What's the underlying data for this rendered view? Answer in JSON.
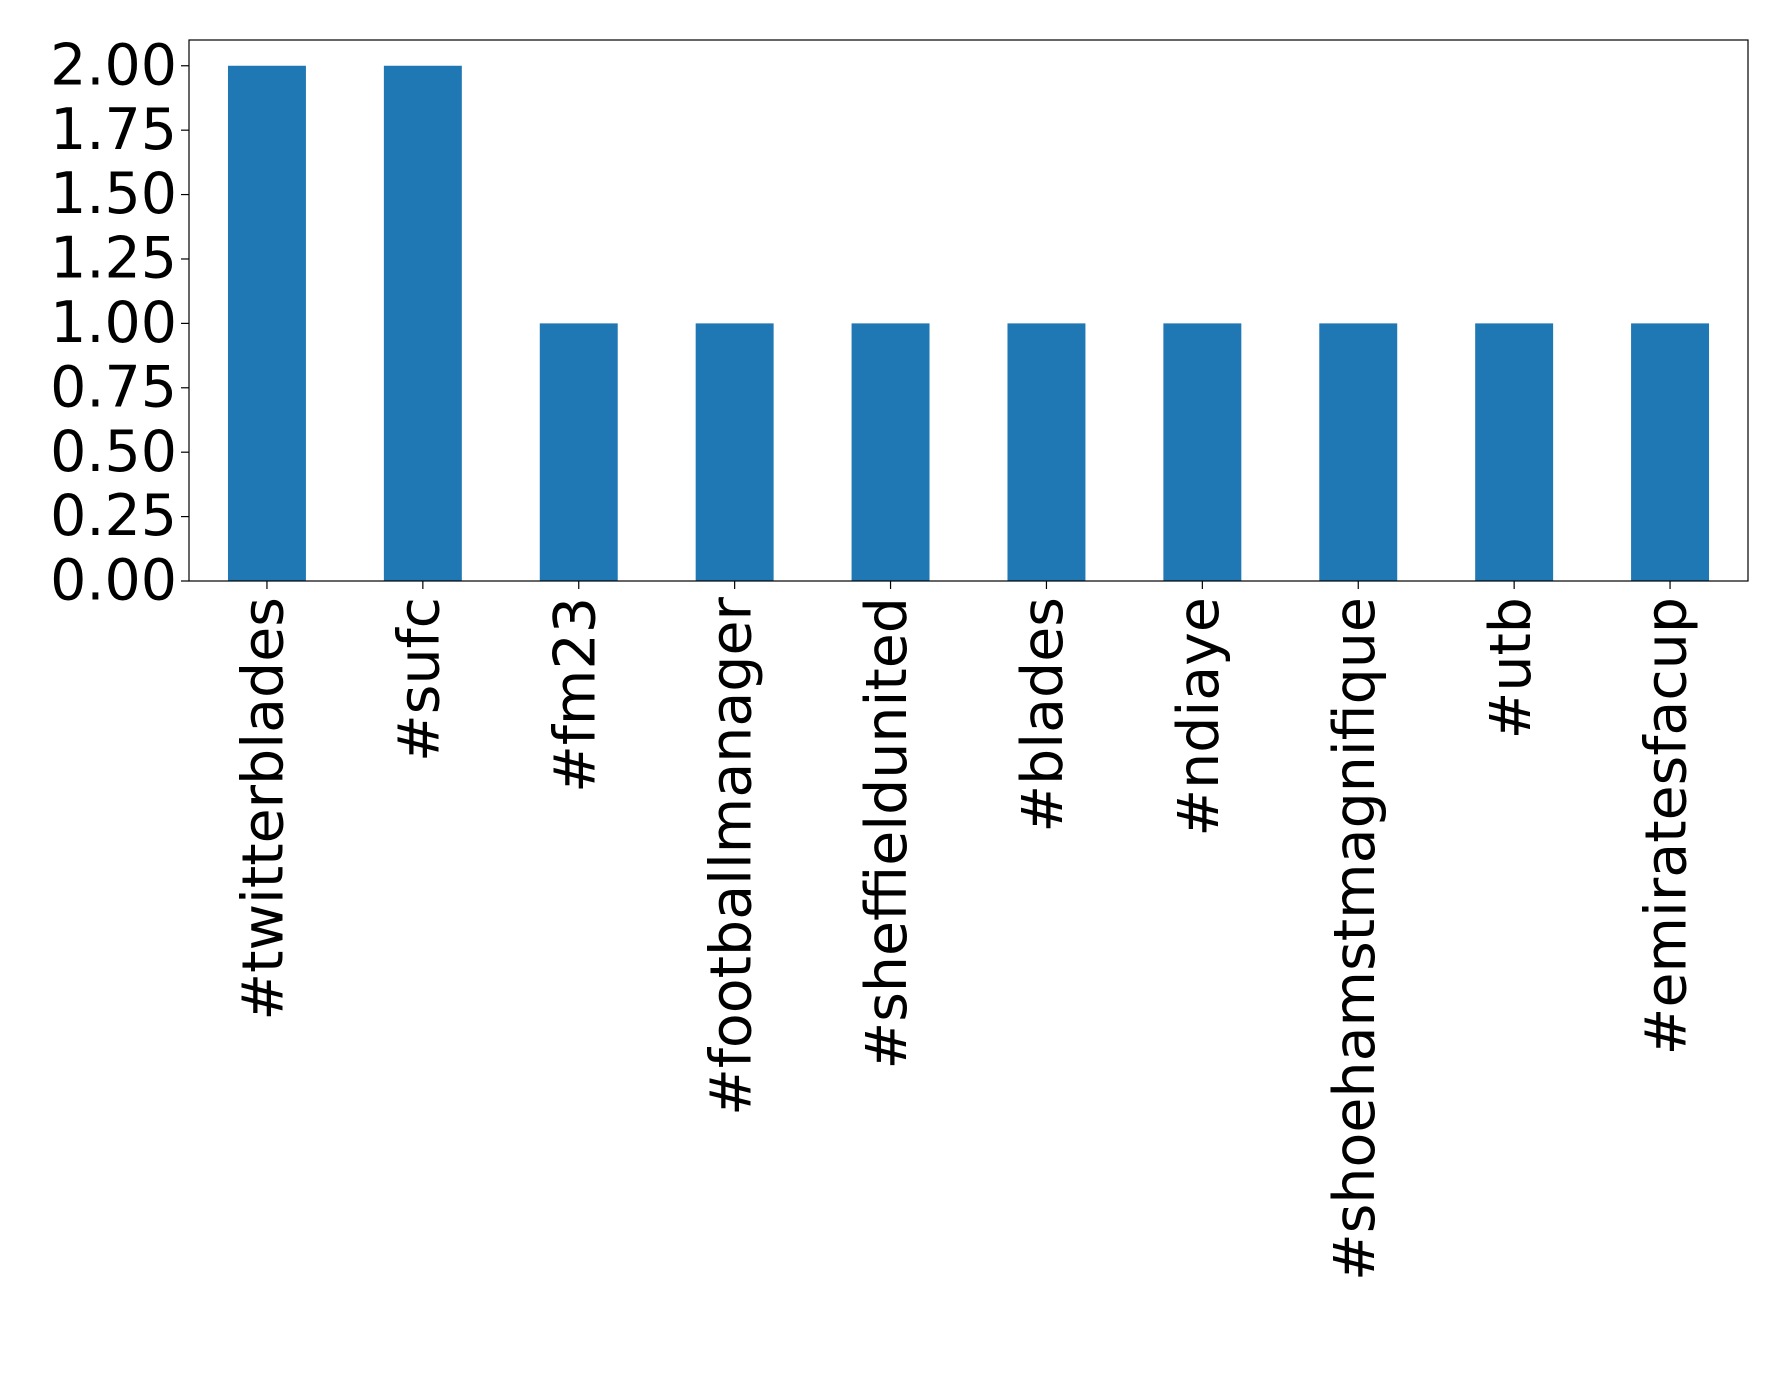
{
  "chart_data": {
    "type": "bar",
    "categories": [
      "#twitterblades",
      "#sufc",
      "#fm23",
      "#footballmanager",
      "#sheffieldunited",
      "#blades",
      "#ndiaye",
      "#shoehamstmagnifique",
      "#utb",
      "#emiratesfacup"
    ],
    "values": [
      2,
      2,
      1,
      1,
      1,
      1,
      1,
      1,
      1,
      1
    ],
    "color": "#1f77b4",
    "ylim": [
      0,
      2.1
    ],
    "yticks": [
      {
        "value": 0,
        "label": "0.00"
      },
      {
        "value": 0.25,
        "label": "0.25"
      },
      {
        "value": 0.5,
        "label": "0.50"
      },
      {
        "value": 0.75,
        "label": "0.75"
      },
      {
        "value": 1,
        "label": "1.00"
      },
      {
        "value": 1.25,
        "label": "1.25"
      },
      {
        "value": 1.5,
        "label": "1.50"
      },
      {
        "value": 1.75,
        "label": "1.75"
      },
      {
        "value": 2,
        "label": "2.00"
      }
    ],
    "grid": false
  }
}
